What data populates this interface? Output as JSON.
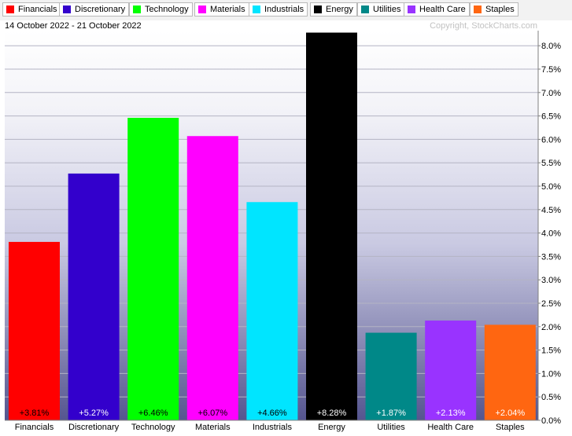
{
  "legend": {
    "items": [
      {
        "label": "Financials",
        "color": "#ff0000"
      },
      {
        "label": "Discretionary",
        "color": "#3300cc"
      },
      {
        "label": "Technology",
        "color": "#00ff00"
      },
      {
        "label": "Materials",
        "color": "#ff00ff"
      },
      {
        "label": "Industrials",
        "color": "#00e5ff"
      },
      {
        "label": "Energy",
        "color": "#000000"
      },
      {
        "label": "Utilities",
        "color": "#008888"
      },
      {
        "label": "Health Care",
        "color": "#9933ff"
      },
      {
        "label": "Staples",
        "color": "#ff6611"
      }
    ]
  },
  "header": {
    "date_range": "14 October 2022 - 21 October 2022",
    "copyright": "Copyright, StockCharts.com"
  },
  "chart_data": {
    "type": "bar",
    "categories": [
      "Financials",
      "Discretionary",
      "Technology",
      "Materials",
      "Industrials",
      "Energy",
      "Utilities",
      "Health Care",
      "Staples"
    ],
    "values": [
      3.81,
      5.27,
      6.46,
      6.07,
      4.66,
      8.28,
      1.87,
      2.13,
      2.04
    ],
    "value_labels": [
      "+3.81%",
      "+5.27%",
      "+6.46%",
      "+6.07%",
      "+4.66%",
      "+8.28%",
      "+1.87%",
      "+2.13%",
      "+2.04%"
    ],
    "colors": [
      "#ff0000",
      "#3300cc",
      "#00ff00",
      "#ff00ff",
      "#00e5ff",
      "#000000",
      "#008888",
      "#9933ff",
      "#ff6611"
    ],
    "label_colors": [
      "#000000",
      "#ffffff",
      "#000000",
      "#000000",
      "#000000",
      "#ffffff",
      "#ffffff",
      "#ffffff",
      "#ffffff"
    ],
    "y_ticks": [
      "0.0%",
      "0.5%",
      "1.0%",
      "1.5%",
      "2.0%",
      "2.5%",
      "3.0%",
      "3.5%",
      "4.0%",
      "4.5%",
      "5.0%",
      "5.5%",
      "6.0%",
      "6.5%",
      "7.0%",
      "7.5%",
      "8.0%"
    ],
    "ylim": [
      0,
      8.0
    ],
    "y_axis_side": "right",
    "grid": true,
    "title": "",
    "xlabel": "",
    "ylabel": ""
  }
}
